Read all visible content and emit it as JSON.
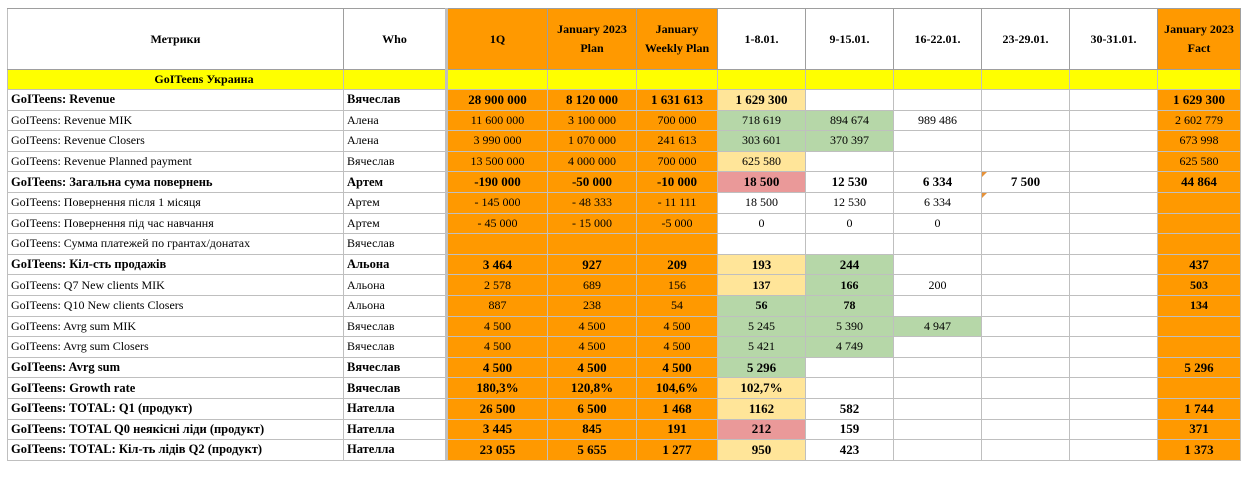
{
  "headers": [
    "Метрики",
    "Who",
    "1Q",
    "January 2023 Plan",
    "January Weekly Plan",
    "1-8.01.",
    "9-15.01.",
    "16-22.01.",
    "23-29.01.",
    "30-31.01.",
    "January 2023 Fact"
  ],
  "section_title": "GoITeens Украина",
  "rows": [
    {
      "label": "GoITeens: Revenue",
      "who": "Вячеслав",
      "v": [
        "28 900 000",
        "8 120 000",
        "1 631 613",
        "1 629 300",
        "",
        "",
        "",
        "",
        "1 629 300"
      ],
      "bold": true
    },
    {
      "label": "GoITeens: Revenue MIK",
      "who": "Алена",
      "v": [
        "11 600 000",
        "3 100 000",
        "700 000",
        "718 619",
        "894 674",
        "989 486",
        "",
        "",
        "2 602 779"
      ]
    },
    {
      "label": "GoITeens: Revenue Closers",
      "who": "Алена",
      "v": [
        "3 990 000",
        "1 070 000",
        "241 613",
        "303 601",
        "370 397",
        "",
        "",
        "",
        "673 998"
      ]
    },
    {
      "label": "GoITeens: Revenue Planned payment",
      "who": "Вячеслав",
      "v": [
        "13 500 000",
        "4 000 000",
        "700 000",
        "625 580",
        "",
        "",
        "",
        "",
        "625 580"
      ]
    },
    {
      "label": "GoITeens: Загальна сума повернень",
      "who": "Артем",
      "v": [
        "-190 000",
        "-50 000",
        "-10 000",
        "18 500",
        "12 530",
        "6 334",
        "7 500",
        "",
        "44 864"
      ],
      "bold": true
    },
    {
      "label": "GoITeens: Повернення після 1 місяця",
      "who": "Артем",
      "v": [
        "- 145 000",
        "- 48 333",
        "- 11 111",
        "18 500",
        "12 530",
        "6 334",
        "",
        "",
        ""
      ]
    },
    {
      "label": "GoITeens: Повернення під час навчання",
      "who": "Артем",
      "v": [
        "- 45 000",
        "- 15 000",
        "-5 000",
        "0",
        "0",
        "0",
        "",
        "",
        ""
      ]
    },
    {
      "label": "GoITeens: Сумма платежей по грантах/донатах",
      "who": "Вячеслав",
      "v": [
        "",
        "",
        "",
        "",
        "",
        "",
        "",
        "",
        ""
      ]
    },
    {
      "label": "GoITeens: Кіл-сть продажів",
      "who": "Альона",
      "v": [
        "3 464",
        "927",
        "209",
        "193",
        "244",
        "",
        "",
        "",
        "437"
      ],
      "bold": true
    },
    {
      "label": "GoITeens: Q7 New clients MIK",
      "who": "Альона",
      "v": [
        "2 578",
        "689",
        "156",
        "137",
        "166",
        "200",
        "",
        "",
        "503"
      ]
    },
    {
      "label": "GoITeens: Q10 New clients Closers",
      "who": "Альона",
      "v": [
        "887",
        "238",
        "54",
        "56",
        "78",
        "",
        "",
        "",
        "134"
      ]
    },
    {
      "label": "GoITeens: Avrg sum MIK",
      "who": "Вячеслав",
      "v": [
        "4 500",
        "4 500",
        "4 500",
        "5 245",
        "5 390",
        "4 947",
        "",
        "",
        ""
      ]
    },
    {
      "label": "GoITeens: Avrg sum Closers",
      "who": "Вячеслав",
      "v": [
        "4 500",
        "4 500",
        "4 500",
        "5 421",
        "4 749",
        "",
        "",
        "",
        ""
      ]
    },
    {
      "label": "GoITeens: Avrg sum",
      "who": "Вячеслав",
      "v": [
        "4 500",
        "4 500",
        "4 500",
        "5 296",
        "",
        "",
        "",
        "",
        "5 296"
      ],
      "bold": true
    },
    {
      "label": "GoITeens: Growth rate",
      "who": "Вячеслав",
      "v": [
        "180,3%",
        "120,8%",
        "104,6%",
        "102,7%",
        "",
        "",
        "",
        "",
        ""
      ],
      "bold": true
    },
    {
      "label": "GoITeens: TOTAL: Q1 (продукт)",
      "who": "Нателла",
      "v": [
        "26 500",
        "6 500",
        "1 468",
        "1162",
        "582",
        "",
        "",
        "",
        "1 744"
      ],
      "bold": true
    },
    {
      "label": "GoITeens: TOTAL Q0 неякісні ліди (продукт)",
      "who": "Нателла",
      "v": [
        "3 445",
        "845",
        "191",
        "212",
        "159",
        "",
        "",
        "",
        "371"
      ],
      "bold": true
    },
    {
      "label": "GoITeens: TOTAL: Кіл-ть лідів Q2 (продукт)",
      "who": "Нателла",
      "v": [
        "23 055",
        "5 655",
        "1 277",
        "950",
        "423",
        "",
        "",
        "",
        "1 373"
      ],
      "bold": true
    }
  ],
  "colors": {
    "orange": "#ff9900",
    "green": "#b6d7a8",
    "light_yellow": "#ffe599",
    "red": "#ea9999",
    "section_yellow": "#ffff00"
  }
}
